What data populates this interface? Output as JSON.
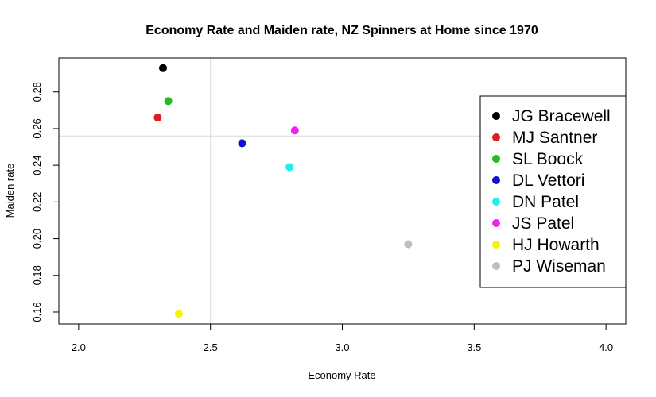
{
  "chart_data": {
    "type": "scatter",
    "title": "Economy Rate and Maiden rate, NZ Spinners at Home since 1970",
    "xlabel": "Economy Rate",
    "ylabel": "Maiden rate",
    "xlim": [
      1.925,
      4.075
    ],
    "ylim": [
      0.1535,
      0.2985
    ],
    "xticks": [
      2.0,
      2.5,
      3.0,
      3.5,
      4.0
    ],
    "xtick_labels": [
      "2.0",
      "2.5",
      "3.0",
      "3.5",
      "4.0"
    ],
    "yticks": [
      0.16,
      0.18,
      0.2,
      0.22,
      0.24,
      0.26,
      0.28
    ],
    "ytick_labels": [
      "0.16",
      "0.18",
      "0.20",
      "0.22",
      "0.24",
      "0.26",
      "0.28"
    ],
    "reference_lines": {
      "x": 2.5,
      "y": 0.256
    },
    "legend_position": "right",
    "points": [
      {
        "name": "JG Bracewell",
        "x": 2.32,
        "y": 0.293,
        "color": "#000000"
      },
      {
        "name": "MJ Santner",
        "x": 2.3,
        "y": 0.266,
        "color": "#DF1D1D"
      },
      {
        "name": "SL Boock",
        "x": 2.34,
        "y": 0.275,
        "color": "#22BB22"
      },
      {
        "name": "DL Vettori",
        "x": 2.62,
        "y": 0.252,
        "color": "#1010D0"
      },
      {
        "name": "DN Patel",
        "x": 2.8,
        "y": 0.239,
        "color": "#22EEEE"
      },
      {
        "name": "JS Patel",
        "x": 2.82,
        "y": 0.259,
        "color": "#EE22EE"
      },
      {
        "name": "HJ Howarth",
        "x": 2.38,
        "y": 0.159,
        "color": "#F5F500"
      },
      {
        "name": "PJ Wiseman",
        "x": 3.25,
        "y": 0.197,
        "color": "#BEBEBE"
      }
    ]
  }
}
